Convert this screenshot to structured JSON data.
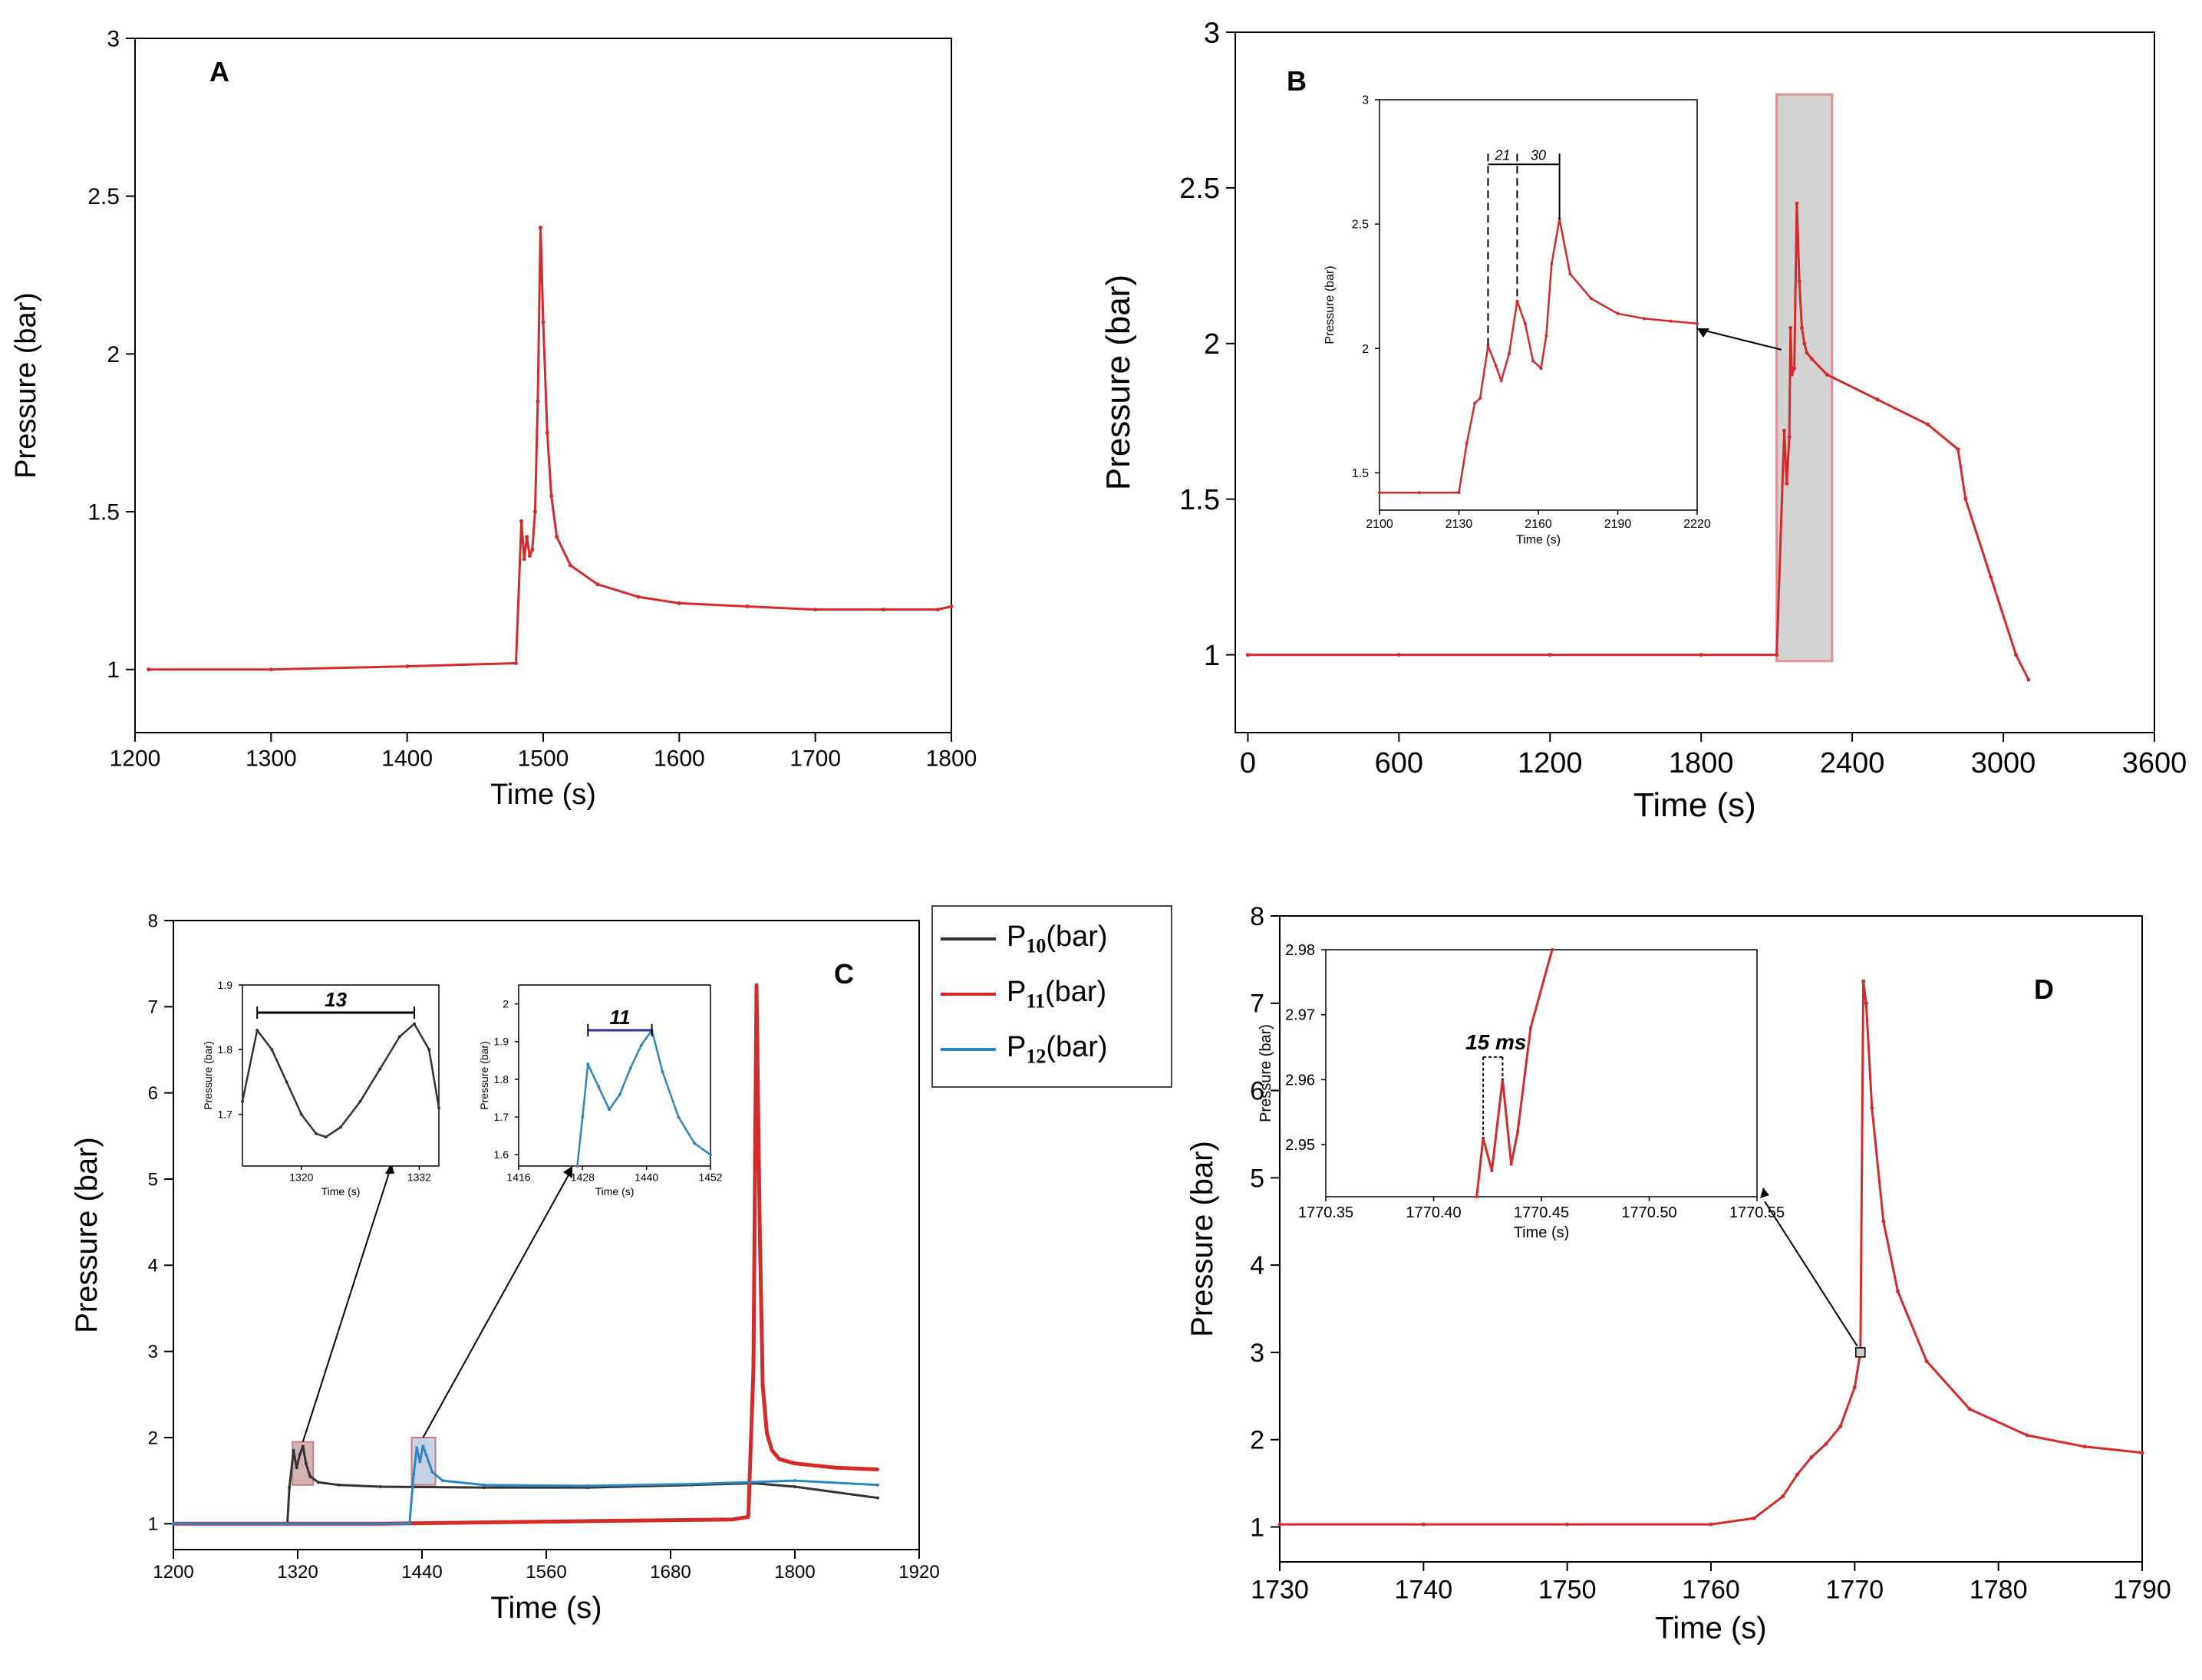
{
  "chart_data": [
    {
      "id": "A",
      "type": "line",
      "panel_label": "A",
      "xlabel": "Time (s)",
      "ylabel": "Pressure (bar)",
      "xlim": [
        1200,
        1800
      ],
      "ylim": [
        0.8,
        3.0
      ],
      "xticks": [
        1200,
        1300,
        1400,
        1500,
        1600,
        1700,
        1800
      ],
      "yticks": [
        1,
        1.5,
        2,
        2.5,
        3
      ],
      "ytick_labels": [
        "1",
        "1.5",
        "2",
        "2.5",
        "3"
      ],
      "color": "#d42a2a",
      "series": [
        {
          "x": [
            1210,
            1300,
            1400,
            1480,
            1484,
            1486,
            1488,
            1490,
            1492,
            1494,
            1496,
            1498,
            1500,
            1503,
            1506,
            1510,
            1520,
            1540,
            1570,
            1600,
            1650,
            1700,
            1750,
            1790,
            1800
          ],
          "y": [
            1.0,
            1.0,
            1.01,
            1.02,
            1.47,
            1.35,
            1.42,
            1.36,
            1.38,
            1.5,
            1.85,
            2.4,
            2.1,
            1.75,
            1.55,
            1.42,
            1.33,
            1.27,
            1.23,
            1.21,
            1.2,
            1.19,
            1.19,
            1.19,
            1.2
          ]
        }
      ]
    },
    {
      "id": "B",
      "type": "line",
      "panel_label": "B",
      "xlabel": "Time (s)",
      "ylabel": "Pressure (bar)",
      "xlim": [
        -50,
        3600
      ],
      "ylim": [
        0.75,
        3.0
      ],
      "xticks": [
        0,
        600,
        1200,
        1800,
        2400,
        3000,
        3600
      ],
      "yticks": [
        1,
        1.5,
        2,
        2.5,
        3
      ],
      "ytick_labels": [
        "1",
        "1.5",
        "2",
        "2.5",
        "3"
      ],
      "color": "#d42a2a",
      "highlight": {
        "x": [
          2100,
          2320
        ],
        "y": [
          0.98,
          2.8
        ]
      },
      "series": [
        {
          "x": [
            0,
            600,
            1200,
            1800,
            2100,
            2130,
            2140,
            2150,
            2155,
            2160,
            2170,
            2180,
            2190,
            2200,
            2210,
            2220,
            2240,
            2300,
            2500,
            2700,
            2820,
            2850,
            2950,
            3050,
            3100
          ],
          "y": [
            1.0,
            1.0,
            1.0,
            1.0,
            1.0,
            1.72,
            1.55,
            1.7,
            2.05,
            1.9,
            1.92,
            2.45,
            2.2,
            2.05,
            2.0,
            1.97,
            1.95,
            1.9,
            1.82,
            1.74,
            1.66,
            1.5,
            1.25,
            1.0,
            0.92
          ]
        }
      ],
      "inset": {
        "xlabel": "Time (s)",
        "ylabel": "Pressure (bar)",
        "xlim": [
          2100,
          2220
        ],
        "ylim": [
          1.35,
          3.0
        ],
        "xticks": [
          2100,
          2130,
          2160,
          2190,
          2220
        ],
        "yticks": [
          1.5,
          2,
          2.5,
          3
        ],
        "ytick_labels": [
          "1.5",
          "2",
          "2.5",
          "3"
        ],
        "annotations": [
          "21",
          "30"
        ],
        "series": [
          {
            "x": [
              2100,
              2115,
              2130,
              2133,
              2136,
              2138,
              2141,
              2144,
              2146,
              2149,
              2152,
              2155,
              2158,
              2161,
              2163,
              2165,
              2168,
              2172,
              2180,
              2190,
              2200,
              2210,
              2220
            ],
            "y": [
              1.42,
              1.42,
              1.42,
              1.62,
              1.78,
              1.8,
              2.01,
              1.93,
              1.87,
              1.98,
              2.19,
              2.1,
              1.95,
              1.92,
              2.05,
              2.34,
              2.52,
              2.3,
              2.2,
              2.14,
              2.12,
              2.11,
              2.1
            ]
          }
        ]
      }
    },
    {
      "id": "C",
      "type": "line",
      "panel_label": "C",
      "xlabel": "Time (s)",
      "ylabel": "Pressure (bar)",
      "xlim": [
        1200,
        1920
      ],
      "ylim": [
        0.7,
        8.0
      ],
      "xticks": [
        1200,
        1320,
        1440,
        1560,
        1680,
        1800,
        1920
      ],
      "yticks": [
        1,
        2,
        3,
        4,
        5,
        6,
        7,
        8
      ],
      "ytick_labels": [
        "1",
        "2",
        "3",
        "4",
        "5",
        "6",
        "7",
        "8"
      ],
      "legend_position": "top-right outside",
      "highlights": [
        {
          "x": [
            1315,
            1335
          ],
          "y": [
            1.45,
            1.95
          ],
          "color": "#c9a0a0"
        },
        {
          "x": [
            1430,
            1453
          ],
          "y": [
            1.45,
            2.0
          ],
          "color": "#b8c8e0"
        }
      ],
      "series": [
        {
          "name": "P10(bar)",
          "name_main": "P",
          "name_sub": "10",
          "name_suffix": "(bar)",
          "color": "#333333",
          "x": [
            1200,
            1300,
            1310,
            1312,
            1316,
            1319,
            1322,
            1325,
            1328,
            1332,
            1340,
            1360,
            1400,
            1500,
            1600,
            1700,
            1760,
            1800,
            1880
          ],
          "y": [
            1.0,
            1.0,
            1.0,
            1.42,
            1.85,
            1.65,
            1.8,
            1.9,
            1.7,
            1.55,
            1.48,
            1.45,
            1.43,
            1.42,
            1.42,
            1.45,
            1.47,
            1.43,
            1.3
          ]
        },
        {
          "name": "P11(bar)",
          "name_main": "P",
          "name_sub": "11",
          "name_suffix": "(bar)",
          "color": "#d42a2a",
          "x": [
            1200,
            1400,
            1600,
            1740,
            1755,
            1760,
            1763,
            1766,
            1769,
            1773,
            1778,
            1785,
            1800,
            1840,
            1880
          ],
          "y": [
            1.0,
            1.0,
            1.03,
            1.05,
            1.08,
            2.8,
            7.25,
            4.5,
            2.6,
            2.05,
            1.85,
            1.75,
            1.7,
            1.65,
            1.63
          ]
        },
        {
          "name": "P12(bar)",
          "name_main": "P",
          "name_sub": "12",
          "name_suffix": "(bar)",
          "color": "#2e86c1",
          "x": [
            1200,
            1420,
            1428,
            1432,
            1435,
            1438,
            1441,
            1444,
            1450,
            1460,
            1500,
            1600,
            1700,
            1800,
            1880
          ],
          "y": [
            1.0,
            1.0,
            1.0,
            1.58,
            1.88,
            1.72,
            1.9,
            1.8,
            1.6,
            1.5,
            1.45,
            1.44,
            1.46,
            1.5,
            1.45
          ]
        }
      ],
      "insets": [
        {
          "xlabel": "Time (s)",
          "ylabel": "Pressure (bar)",
          "xlim": [
            1314,
            1334
          ],
          "ylim": [
            1.62,
            1.9
          ],
          "xticks": [
            1320,
            1332
          ],
          "yticks": [
            1.7,
            1.8,
            1.9
          ],
          "ytick_labels": [
            "1.7",
            "1.8",
            "1.9"
          ],
          "annotation": "13",
          "color": "#333333",
          "series": [
            {
              "x": [
                1314,
                1315.5,
                1317,
                1318.5,
                1320,
                1321.5,
                1322.5,
                1324,
                1326,
                1328,
                1330,
                1331.5,
                1333,
                1334
              ],
              "y": [
                1.72,
                1.83,
                1.8,
                1.75,
                1.7,
                1.67,
                1.665,
                1.68,
                1.72,
                1.77,
                1.82,
                1.84,
                1.8,
                1.71
              ]
            }
          ]
        },
        {
          "xlabel": "Time (s)",
          "ylabel": "Pressure (bar)",
          "xlim": [
            1416,
            1452
          ],
          "ylim": [
            1.57,
            2.05
          ],
          "xticks": [
            1416,
            1428,
            1440,
            1452
          ],
          "yticks": [
            1.6,
            1.7,
            1.8,
            1.9,
            2
          ],
          "ytick_labels": [
            "1.6",
            "1.7",
            "1.8",
            "1.9",
            "2"
          ],
          "annotation": "11",
          "color": "#2e86c1",
          "series": [
            {
              "x": [
                1427,
                1428,
                1429,
                1431,
                1433,
                1435,
                1437,
                1439,
                1441,
                1443,
                1446,
                1449,
                1452
              ],
              "y": [
                1.57,
                1.7,
                1.84,
                1.78,
                1.72,
                1.76,
                1.83,
                1.89,
                1.93,
                1.82,
                1.7,
                1.63,
                1.6
              ]
            }
          ]
        }
      ]
    },
    {
      "id": "D",
      "type": "line",
      "panel_label": "D",
      "xlabel": "Time (s)",
      "ylabel": "Pressure (bar)",
      "xlim": [
        1730,
        1790
      ],
      "ylim": [
        0.6,
        8.0
      ],
      "xticks": [
        1730,
        1740,
        1750,
        1760,
        1770,
        1780,
        1790
      ],
      "yticks": [
        1,
        2,
        3,
        4,
        5,
        6,
        7,
        8
      ],
      "ytick_labels": [
        "1",
        "2",
        "3",
        "4",
        "5",
        "6",
        "7",
        "8"
      ],
      "color": "#d42a2a",
      "marker": {
        "x": 1770.4,
        "y": 3.0
      },
      "series": [
        {
          "x": [
            1730,
            1740,
            1750,
            1760,
            1763,
            1765,
            1766,
            1767,
            1768,
            1769,
            1770,
            1770.4,
            1770.6,
            1770.8,
            1771.2,
            1772,
            1773,
            1775,
            1778,
            1782,
            1786,
            1790
          ],
          "y": [
            1.03,
            1.03,
            1.03,
            1.03,
            1.1,
            1.35,
            1.6,
            1.8,
            1.95,
            2.15,
            2.6,
            3.0,
            7.25,
            7.0,
            5.8,
            4.5,
            3.7,
            2.9,
            2.35,
            2.05,
            1.92,
            1.85
          ]
        }
      ],
      "inset": {
        "xlabel": "Time (s)",
        "ylabel": "Pressure (bar)",
        "xlim": [
          1770.35,
          1770.55
        ],
        "ylim": [
          2.942,
          2.98
        ],
        "xticks": [
          1770.35,
          1770.4,
          1770.45,
          1770.5,
          1770.55
        ],
        "xtick_labels": [
          "1770.35",
          "1770.40",
          "1770.45",
          "1770.50",
          "1770.55"
        ],
        "yticks": [
          2.95,
          2.96,
          2.97,
          2.98
        ],
        "ytick_labels": [
          "2.95",
          "2.96",
          "2.97",
          "2.98"
        ],
        "annotation": "15 ms",
        "series": [
          {
            "x": [
              1770.42,
              1770.423,
              1770.427,
              1770.432,
              1770.436,
              1770.439,
              1770.445,
              1770.455
            ],
            "y": [
              2.942,
              2.951,
              2.946,
              2.96,
              2.947,
              2.952,
              2.968,
              2.98
            ]
          }
        ]
      }
    }
  ]
}
